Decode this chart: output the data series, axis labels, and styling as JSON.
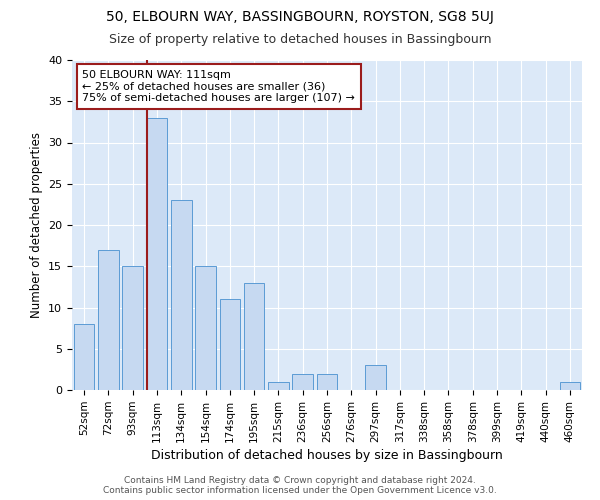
{
  "title1": "50, ELBOURN WAY, BASSINGBOURN, ROYSTON, SG8 5UJ",
  "title2": "Size of property relative to detached houses in Bassingbourn",
  "xlabel": "Distribution of detached houses by size in Bassingbourn",
  "ylabel": "Number of detached properties",
  "categories": [
    "52sqm",
    "72sqm",
    "93sqm",
    "113sqm",
    "134sqm",
    "154sqm",
    "174sqm",
    "195sqm",
    "215sqm",
    "236sqm",
    "256sqm",
    "276sqm",
    "297sqm",
    "317sqm",
    "338sqm",
    "358sqm",
    "378sqm",
    "399sqm",
    "419sqm",
    "440sqm",
    "460sqm"
  ],
  "values": [
    8,
    17,
    15,
    33,
    23,
    15,
    11,
    13,
    1,
    2,
    2,
    0,
    3,
    0,
    0,
    0,
    0,
    0,
    0,
    0,
    1
  ],
  "bar_color": "#c6d9f1",
  "bar_edgecolor": "#5b9bd5",
  "vline_x_index": 3,
  "vline_color": "#9b1c1c",
  "annotation_line1": "50 ELBOURN WAY: 111sqm",
  "annotation_line2": "← 25% of detached houses are smaller (36)",
  "annotation_line3": "75% of semi-detached houses are larger (107) →",
  "annotation_box_color": "#ffffff",
  "annotation_box_edgecolor": "#9b1c1c",
  "ylim": [
    0,
    40
  ],
  "background_color": "#dce9f8",
  "grid_color": "#ffffff",
  "footer1": "Contains HM Land Registry data © Crown copyright and database right 2024.",
  "footer2": "Contains public sector information licensed under the Open Government Licence v3.0."
}
